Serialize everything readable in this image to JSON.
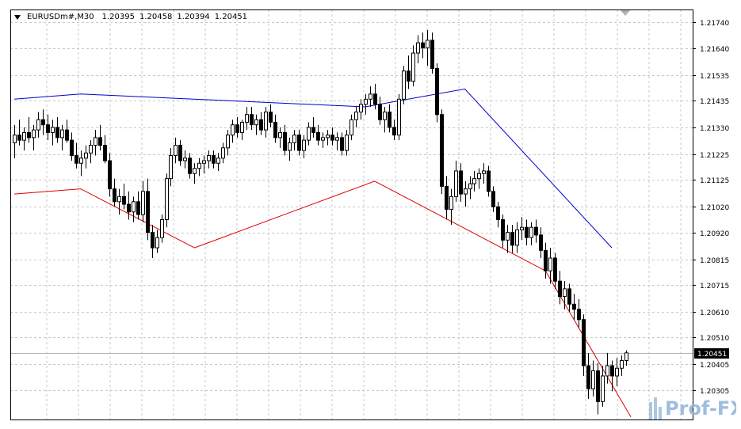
{
  "header": {
    "symbol": "EURUSDm#,M30",
    "open": "1.20395",
    "high": "1.20458",
    "low": "1.20394",
    "close": "1.20451"
  },
  "logo_text": "Prof-FX",
  "colors": {
    "bull_candle": "#ffffff",
    "bear_candle": "#000000",
    "upper_line": "#0000cc",
    "lower_line": "#dd0000",
    "grid": "#c8c8c8",
    "axis": "#000000",
    "price_label_bg": "#000000",
    "price_label_fg": "#ffffff"
  },
  "chart_data": {
    "type": "candlestick",
    "title": "",
    "ylim": [
      1.2019,
      1.2179
    ],
    "y_ticks": [
      "1.21740",
      "1.21640",
      "1.21535",
      "1.21435",
      "1.21330",
      "1.21225",
      "1.21125",
      "1.21020",
      "1.20920",
      "1.20815",
      "1.20715",
      "1.20610",
      "1.20510",
      "1.20405",
      "1.20305"
    ],
    "current_price": "1.20451",
    "x_count": 130,
    "candles": [
      [
        1.2127,
        1.2134,
        1.2121,
        1.213
      ],
      [
        1.213,
        1.2136,
        1.2126,
        1.2128
      ],
      [
        1.2128,
        1.2133,
        1.2124,
        1.2131
      ],
      [
        1.2131,
        1.2137,
        1.2127,
        1.2129
      ],
      [
        1.2129,
        1.2134,
        1.2124,
        1.2132
      ],
      [
        1.2132,
        1.2139,
        1.2129,
        1.2136
      ],
      [
        1.2136,
        1.214,
        1.213,
        1.2134
      ],
      [
        1.2134,
        1.2138,
        1.2128,
        1.2131
      ],
      [
        1.2131,
        1.2136,
        1.2126,
        1.2133
      ],
      [
        1.2133,
        1.2137,
        1.2127,
        1.2129
      ],
      [
        1.2129,
        1.2134,
        1.2124,
        1.2132
      ],
      [
        1.2132,
        1.2136,
        1.2127,
        1.2128
      ],
      [
        1.2128,
        1.2131,
        1.212,
        1.2122
      ],
      [
        1.2122,
        1.2127,
        1.2117,
        1.2119
      ],
      [
        1.2119,
        1.2124,
        1.2114,
        1.2121
      ],
      [
        1.2121,
        1.2126,
        1.2117,
        1.2123
      ],
      [
        1.2123,
        1.2128,
        1.2119,
        1.2126
      ],
      [
        1.2126,
        1.2132,
        1.2122,
        1.2129
      ],
      [
        1.2129,
        1.2134,
        1.2124,
        1.2126
      ],
      [
        1.2126,
        1.213,
        1.2119,
        1.212
      ],
      [
        1.212,
        1.2123,
        1.2106,
        1.2109
      ],
      [
        1.2109,
        1.2113,
        1.2102,
        1.2104
      ],
      [
        1.2104,
        1.2109,
        1.2099,
        1.2106
      ],
      [
        1.2106,
        1.2111,
        1.2101,
        1.2103
      ],
      [
        1.2103,
        1.2108,
        1.2097,
        1.21
      ],
      [
        1.21,
        1.2106,
        1.2096,
        1.2104
      ],
      [
        1.2104,
        1.2108,
        1.2097,
        1.2099
      ],
      [
        1.2099,
        1.2112,
        1.2096,
        1.2108
      ],
      [
        1.2108,
        1.2113,
        1.2089,
        1.2092
      ],
      [
        1.2092,
        1.2095,
        1.2082,
        1.2086
      ],
      [
        1.2086,
        1.2093,
        1.2084,
        1.209
      ],
      [
        1.209,
        1.2099,
        1.2088,
        1.2097
      ],
      [
        1.2097,
        1.2115,
        1.2094,
        1.2113
      ],
      [
        1.2113,
        1.2125,
        1.211,
        1.2122
      ],
      [
        1.2122,
        1.2129,
        1.2119,
        1.2126
      ],
      [
        1.2126,
        1.2128,
        1.2118,
        1.212
      ],
      [
        1.212,
        1.2124,
        1.2117,
        1.2121
      ],
      [
        1.2121,
        1.2123,
        1.2113,
        1.2115
      ],
      [
        1.2115,
        1.2119,
        1.2111,
        1.2117
      ],
      [
        1.2117,
        1.2121,
        1.2114,
        1.2119
      ],
      [
        1.2119,
        1.2122,
        1.2115,
        1.212
      ],
      [
        1.212,
        1.2124,
        1.2117,
        1.2122
      ],
      [
        1.2122,
        1.2124,
        1.2117,
        1.2119
      ],
      [
        1.2119,
        1.2123,
        1.2116,
        1.2121
      ],
      [
        1.2121,
        1.2127,
        1.2119,
        1.2125
      ],
      [
        1.2125,
        1.2132,
        1.2122,
        1.213
      ],
      [
        1.213,
        1.2136,
        1.2127,
        1.2134
      ],
      [
        1.2134,
        1.2137,
        1.2129,
        1.2131
      ],
      [
        1.2131,
        1.2136,
        1.2128,
        1.2135
      ],
      [
        1.2135,
        1.2141,
        1.2132,
        1.2138
      ],
      [
        1.2138,
        1.2141,
        1.2132,
        1.2134
      ],
      [
        1.2134,
        1.2138,
        1.213,
        1.2136
      ],
      [
        1.2136,
        1.2139,
        1.213,
        1.2132
      ],
      [
        1.2132,
        1.2141,
        1.2129,
        1.2139
      ],
      [
        1.2139,
        1.2142,
        1.2133,
        1.2135
      ],
      [
        1.2135,
        1.2138,
        1.2127,
        1.2129
      ],
      [
        1.2129,
        1.2133,
        1.2125,
        1.2131
      ],
      [
        1.2131,
        1.2134,
        1.2122,
        1.2124
      ],
      [
        1.2124,
        1.2129,
        1.212,
        1.2127
      ],
      [
        1.2127,
        1.2132,
        1.2124,
        1.213
      ],
      [
        1.213,
        1.2132,
        1.2122,
        1.2124
      ],
      [
        1.2124,
        1.213,
        1.2121,
        1.2128
      ],
      [
        1.2128,
        1.2135,
        1.2126,
        1.2133
      ],
      [
        1.2133,
        1.2137,
        1.2129,
        1.2131
      ],
      [
        1.2131,
        1.2134,
        1.2126,
        1.2128
      ],
      [
        1.2128,
        1.2131,
        1.2125,
        1.2129
      ],
      [
        1.2129,
        1.2132,
        1.2126,
        1.213
      ],
      [
        1.213,
        1.2133,
        1.2126,
        1.2128
      ],
      [
        1.2128,
        1.2131,
        1.2124,
        1.2129
      ],
      [
        1.2129,
        1.2131,
        1.2122,
        1.2124
      ],
      [
        1.2124,
        1.2132,
        1.2122,
        1.213
      ],
      [
        1.213,
        1.2138,
        1.2128,
        1.2136
      ],
      [
        1.2136,
        1.2141,
        1.2133,
        1.2139
      ],
      [
        1.2139,
        1.2144,
        1.2136,
        1.2142
      ],
      [
        1.2142,
        1.2146,
        1.2138,
        1.2144
      ],
      [
        1.2144,
        1.2149,
        1.2141,
        1.2146
      ],
      [
        1.2146,
        1.215,
        1.214,
        1.2142
      ],
      [
        1.2142,
        1.2145,
        1.2134,
        1.2136
      ],
      [
        1.2136,
        1.2141,
        1.2131,
        1.2139
      ],
      [
        1.2139,
        1.2142,
        1.2131,
        1.2133
      ],
      [
        1.2133,
        1.2136,
        1.2128,
        1.213
      ],
      [
        1.213,
        1.2146,
        1.2128,
        1.2144
      ],
      [
        1.2144,
        1.2157,
        1.2142,
        1.2155
      ],
      [
        1.2155,
        1.2161,
        1.2148,
        1.2151
      ],
      [
        1.2151,
        1.2165,
        1.2149,
        1.2162
      ],
      [
        1.2162,
        1.2169,
        1.2158,
        1.2166
      ],
      [
        1.2166,
        1.217,
        1.216,
        1.2164
      ],
      [
        1.2164,
        1.2171,
        1.2157,
        1.2167
      ],
      [
        1.2167,
        1.217,
        1.2154,
        1.2156
      ],
      [
        1.2156,
        1.2158,
        1.2135,
        1.2138
      ],
      [
        1.2138,
        1.214,
        1.2107,
        1.211
      ],
      [
        1.211,
        1.2114,
        1.2097,
        1.2101
      ],
      [
        1.2101,
        1.2109,
        1.2095,
        1.2106
      ],
      [
        1.2106,
        1.212,
        1.2104,
        1.2116
      ],
      [
        1.2116,
        1.2119,
        1.2104,
        1.2107
      ],
      [
        1.2107,
        1.2112,
        1.2102,
        1.2109
      ],
      [
        1.2109,
        1.2114,
        1.2105,
        1.2111
      ],
      [
        1.2111,
        1.2116,
        1.2108,
        1.2113
      ],
      [
        1.2113,
        1.2117,
        1.2109,
        1.2115
      ],
      [
        1.2115,
        1.2119,
        1.2111,
        1.2116
      ],
      [
        1.2116,
        1.2118,
        1.2106,
        1.2108
      ],
      [
        1.2108,
        1.211,
        1.21,
        1.2102
      ],
      [
        1.2102,
        1.2104,
        1.2094,
        1.2097
      ],
      [
        1.2097,
        1.2099,
        1.2086,
        1.2089
      ],
      [
        1.2089,
        1.2095,
        1.2084,
        1.2092
      ],
      [
        1.2092,
        1.2095,
        1.2084,
        1.2087
      ],
      [
        1.2087,
        1.2096,
        1.2084,
        1.2093
      ],
      [
        1.2093,
        1.2098,
        1.2089,
        1.2094
      ],
      [
        1.2094,
        1.2097,
        1.2087,
        1.209
      ],
      [
        1.209,
        1.2096,
        1.2087,
        1.2094
      ],
      [
        1.2094,
        1.2097,
        1.2088,
        1.2091
      ],
      [
        1.2091,
        1.2094,
        1.2082,
        1.2085
      ],
      [
        1.2085,
        1.2088,
        1.2074,
        1.2077
      ],
      [
        1.2077,
        1.2086,
        1.2072,
        1.2082
      ],
      [
        1.2082,
        1.2084,
        1.207,
        1.2073
      ],
      [
        1.2073,
        1.2077,
        1.2064,
        1.2067
      ],
      [
        1.2067,
        1.2073,
        1.2062,
        1.207
      ],
      [
        1.207,
        1.2072,
        1.2061,
        1.2064
      ],
      [
        1.2064,
        1.2068,
        1.2058,
        1.2062
      ],
      [
        1.2062,
        1.2066,
        1.2055,
        1.2058
      ],
      [
        1.2058,
        1.206,
        1.2036,
        1.204
      ],
      [
        1.204,
        1.2045,
        1.2027,
        1.2031
      ],
      [
        1.2031,
        1.2042,
        1.2028,
        1.2038
      ],
      [
        1.2038,
        1.2041,
        1.2021,
        1.2026
      ],
      [
        1.2026,
        1.204,
        1.2024,
        1.2036
      ],
      [
        1.2036,
        1.2045,
        1.2033,
        1.204
      ],
      [
        1.204,
        1.2042,
        1.203,
        1.2036
      ],
      [
        1.2036,
        1.2043,
        1.2032,
        1.2039
      ],
      [
        1.2039,
        1.2044,
        1.2036,
        1.2042
      ],
      [
        1.2042,
        1.2046,
        1.204,
        1.2045
      ]
    ],
    "envelope_upper": [
      {
        "x": 0,
        "y": 1.2144
      },
      {
        "x": 14,
        "y": 1.2146
      },
      {
        "x": 74,
        "y": 1.2141
      },
      {
        "x": 95,
        "y": 1.2148
      },
      {
        "x": 126,
        "y": 1.2086
      }
    ],
    "envelope_lower": [
      {
        "x": 0,
        "y": 1.2107
      },
      {
        "x": 14,
        "y": 1.2109
      },
      {
        "x": 38,
        "y": 1.2086
      },
      {
        "x": 76,
        "y": 1.2112
      },
      {
        "x": 112,
        "y": 1.2077
      },
      {
        "x": 130,
        "y": 1.202
      }
    ]
  }
}
